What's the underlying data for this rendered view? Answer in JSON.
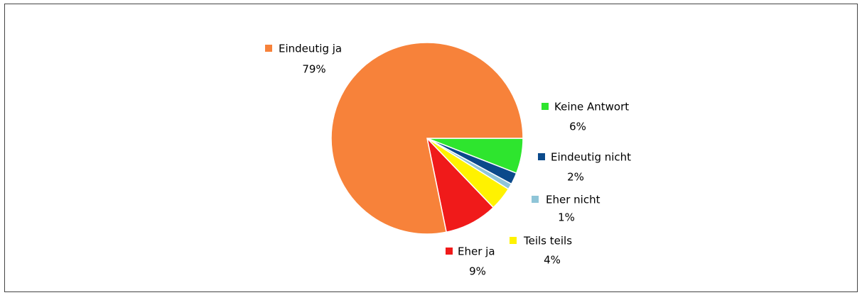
{
  "chart_data": {
    "type": "pie",
    "categories": [
      "Keine Antwort",
      "Eindeutig nicht",
      "Eher nicht",
      "Teils teils",
      "Eher ja",
      "Eindeutig ja"
    ],
    "values": [
      6,
      2,
      1,
      4,
      9,
      79
    ],
    "value_labels": [
      "6%",
      "2%",
      "1%",
      "4%",
      "9%",
      "79%"
    ],
    "colors": [
      "#2ee52e",
      "#0b4a8b",
      "#8fc5d8",
      "#fff200",
      "#f01a1a",
      "#f7823a"
    ]
  }
}
